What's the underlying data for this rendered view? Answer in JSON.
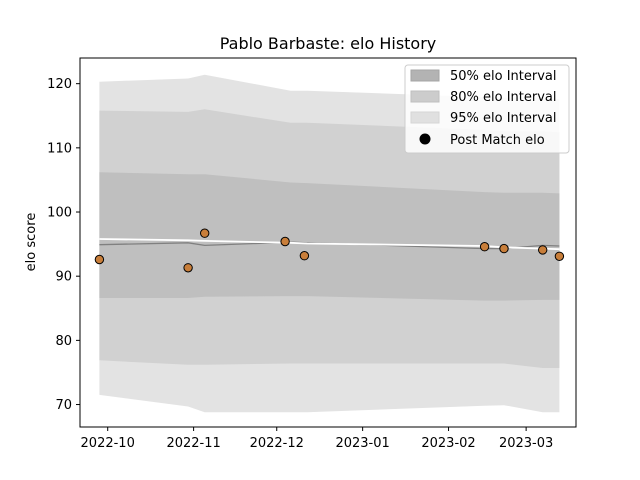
{
  "chart_data": {
    "type": "line",
    "title": "Pablo Barbaste: elo History",
    "xlabel": "",
    "ylabel": "elo score",
    "xlim": [
      "2022-09-21",
      "2023-03-19"
    ],
    "ylim": [
      66.5,
      124
    ],
    "x_ticks": [
      "2022-10",
      "2022-11",
      "2022-12",
      "2023-01",
      "2023-02",
      "2023-03"
    ],
    "y_ticks": [
      70,
      80,
      90,
      100,
      110,
      120
    ],
    "grid": false,
    "legend_position": "top-right",
    "colors": {
      "band95": "#e3e3e3",
      "band80": "#d1d1d1",
      "band50": "#bfbfbf",
      "mean_line": "#808080",
      "white_line": "#ffffff",
      "point_fill": "#c87e3a",
      "point_edge": "#000000"
    },
    "band_x": [
      "2022-09-28",
      "2022-10-30",
      "2022-11-05",
      "2022-12-06",
      "2022-12-12",
      "2023-02-14",
      "2023-02-21",
      "2023-03-07",
      "2023-03-13"
    ],
    "series": [
      {
        "name": "95% elo Interval",
        "kind": "band",
        "upper": [
          120.3,
          120.8,
          121.4,
          118.9,
          118.9,
          117.9,
          117.8,
          117.8,
          117.6
        ],
        "lower": [
          71.5,
          69.7,
          68.8,
          68.8,
          68.8,
          69.8,
          69.9,
          68.8,
          68.8
        ]
      },
      {
        "name": "80% elo Interval",
        "kind": "band",
        "upper": [
          115.8,
          115.6,
          116.0,
          113.9,
          113.9,
          112.8,
          112.6,
          112.6,
          112.4
        ],
        "lower": [
          76.9,
          76.2,
          76.2,
          76.4,
          76.4,
          76.4,
          76.4,
          75.7,
          75.7
        ]
      },
      {
        "name": "50% elo Interval",
        "kind": "band",
        "upper": [
          106.2,
          105.9,
          105.9,
          104.6,
          104.5,
          103.1,
          103.0,
          103.0,
          102.9
        ],
        "lower": [
          86.6,
          86.6,
          86.8,
          86.9,
          86.9,
          86.2,
          86.2,
          86.3,
          86.3
        ]
      },
      {
        "name": "mean",
        "kind": "line",
        "x": [
          "2022-09-28",
          "2022-10-30",
          "2022-11-05",
          "2022-12-06",
          "2022-12-12",
          "2023-02-14",
          "2023-02-21",
          "2023-03-07",
          "2023-03-13"
        ],
        "y": [
          94.9,
          95.2,
          94.8,
          95.3,
          95.2,
          94.3,
          94.3,
          94.8,
          94.7
        ]
      },
      {
        "name": "white",
        "kind": "line",
        "x": [
          "2022-09-28",
          "2022-10-30",
          "2022-11-05",
          "2022-12-06",
          "2022-12-12",
          "2023-02-14",
          "2023-02-21",
          "2023-03-07",
          "2023-03-13"
        ],
        "y": [
          95.8,
          95.6,
          95.5,
          95.2,
          95.1,
          94.7,
          94.5,
          94.3,
          94.2
        ]
      },
      {
        "name": "Post Match elo",
        "kind": "scatter",
        "x": [
          "2022-09-28",
          "2022-10-30",
          "2022-11-05",
          "2022-12-04",
          "2022-12-11",
          "2023-02-14",
          "2023-02-21",
          "2023-03-07",
          "2023-03-13"
        ],
        "y": [
          92.6,
          91.3,
          96.7,
          95.4,
          93.2,
          94.6,
          94.3,
          94.1,
          93.1
        ]
      }
    ],
    "legend": [
      "50% elo Interval",
      "80% elo Interval",
      "95% elo Interval",
      "Post Match elo"
    ]
  }
}
